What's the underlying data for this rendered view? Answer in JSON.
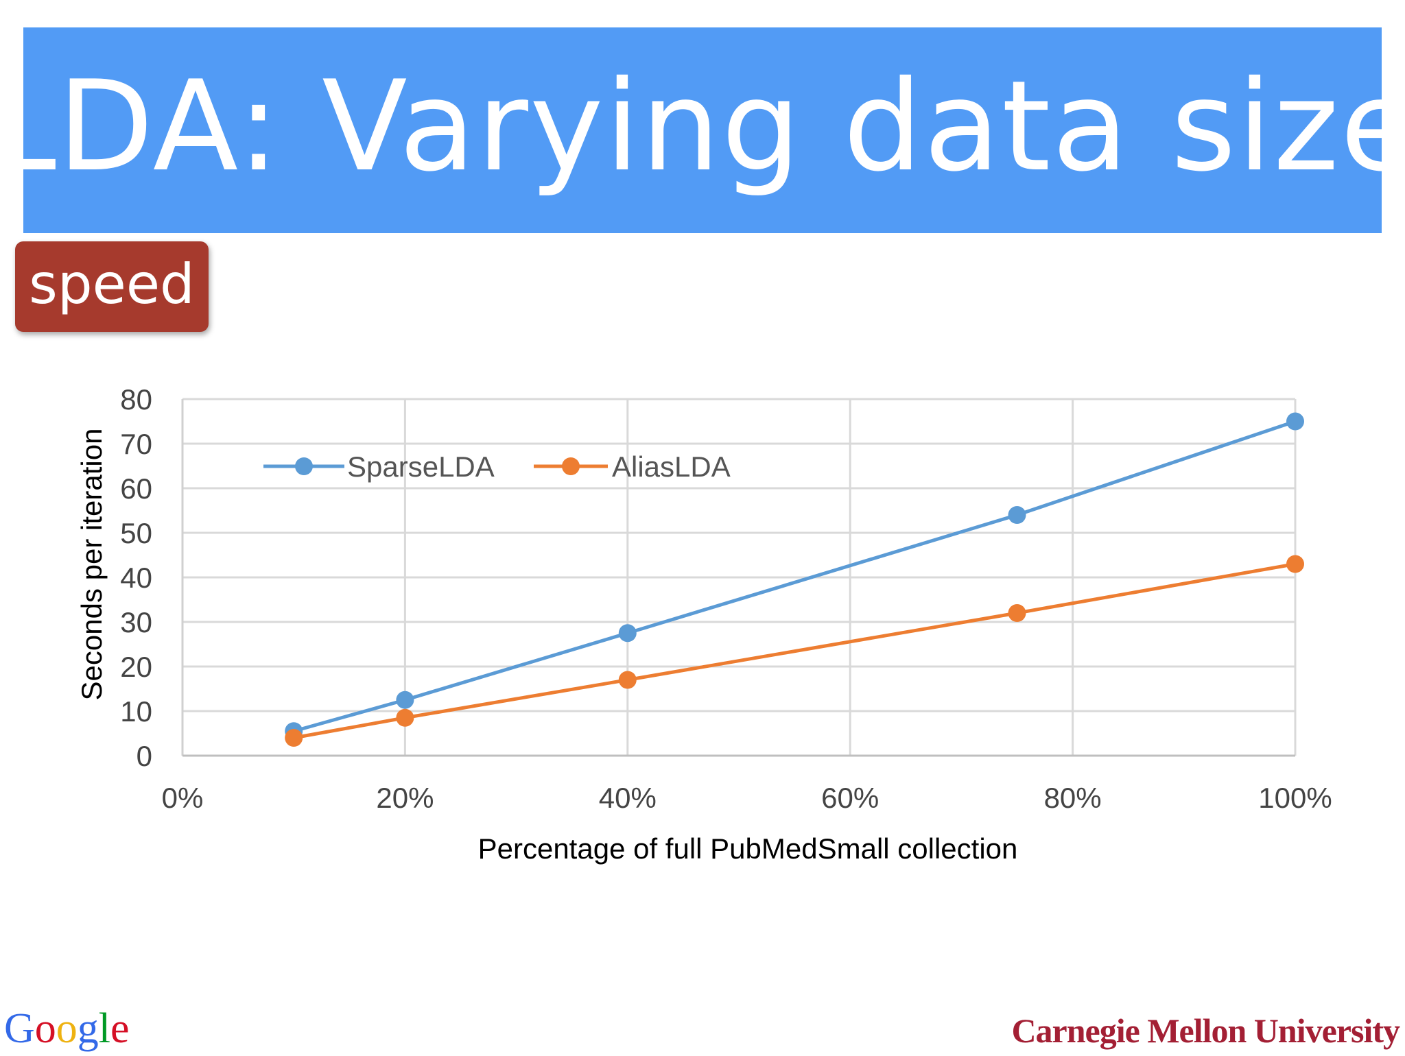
{
  "slide": {
    "title": "LDA: Varying data size",
    "badge": "speed"
  },
  "colors": {
    "banner": "#529bf5",
    "badge": "#a63a2d",
    "sparse": "#5b9bd5",
    "alias": "#ed7d31"
  },
  "chart_data": {
    "type": "line",
    "xlabel": "Percentage of full PubMedSmall collection",
    "ylabel": "Seconds per iteration",
    "xlim": [
      0,
      100
    ],
    "ylim": [
      0,
      80
    ],
    "x_ticks": [
      "0%",
      "20%",
      "40%",
      "60%",
      "80%",
      "100%"
    ],
    "y_ticks": [
      "0",
      "10",
      "20",
      "30",
      "40",
      "50",
      "60",
      "70",
      "80"
    ],
    "grid": true,
    "legend_position": "top-left",
    "x": [
      10,
      20,
      40,
      75,
      100
    ],
    "series": [
      {
        "name": "SparseLDA",
        "color": "#5b9bd5",
        "values": [
          5.5,
          12.5,
          27.5,
          54,
          75
        ]
      },
      {
        "name": "AliasLDA",
        "color": "#ed7d31",
        "values": [
          4,
          8.5,
          17,
          32,
          43
        ]
      }
    ]
  },
  "footer": {
    "left_logo": "Google",
    "right_logo": "Carnegie Mellon University"
  }
}
